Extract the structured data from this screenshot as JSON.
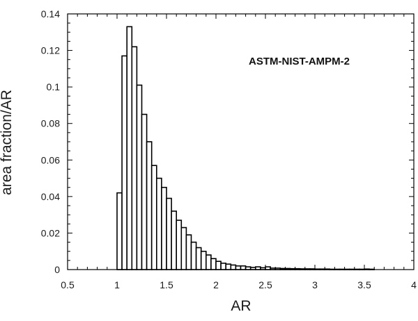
{
  "chart_data": {
    "type": "bar",
    "title": "",
    "xlabel": "AR",
    "ylabel": "area fraction/AR",
    "annotation": "ASTM-NIST-AMPM-2",
    "xlim": [
      0.5,
      4
    ],
    "ylim": [
      0,
      0.14
    ],
    "grid": false,
    "legend": "none",
    "bar_width": 0.05,
    "x_ticks": [
      "0.5",
      "1",
      "1.5",
      "2",
      "2.5",
      "3",
      "3.5",
      "4"
    ],
    "y_ticks": [
      "0",
      "0.02",
      "0.04",
      "0.06",
      "0.08",
      "0.1",
      "0.12",
      "0.14"
    ],
    "bins_left": [
      1.0,
      1.05,
      1.1,
      1.15,
      1.2,
      1.25,
      1.3,
      1.35,
      1.4,
      1.45,
      1.5,
      1.55,
      1.6,
      1.65,
      1.7,
      1.75,
      1.8,
      1.85,
      1.9,
      1.95,
      2.0,
      2.05,
      2.1,
      2.15,
      2.2,
      2.25,
      2.3,
      2.35,
      2.4,
      2.45,
      2.5,
      2.55,
      2.6,
      2.65,
      2.7,
      2.75,
      2.8,
      2.85,
      2.9,
      2.95,
      3.0,
      3.05,
      3.1,
      3.15,
      3.2,
      3.25,
      3.3,
      3.35,
      3.4,
      3.45,
      3.5,
      3.55
    ],
    "values": [
      0.042,
      0.117,
      0.133,
      0.122,
      0.101,
      0.085,
      0.07,
      0.057,
      0.05,
      0.045,
      0.039,
      0.032,
      0.027,
      0.023,
      0.019,
      0.015,
      0.012,
      0.01,
      0.008,
      0.006,
      0.0045,
      0.0035,
      0.003,
      0.0025,
      0.002,
      0.002,
      0.0015,
      0.0012,
      0.0015,
      0.001,
      0.0015,
      0.0008,
      0.0008,
      0.0006,
      0.0006,
      0.0005,
      0.0005,
      0.0004,
      0.0004,
      0.0004,
      0.0003,
      0.0003,
      0.0003,
      0.0002,
      0.0002,
      0.0002,
      0.0002,
      0.0002,
      0.0002,
      0.0002,
      0.0003,
      0.0002
    ],
    "colors": {
      "bar_fill": "#ffffff",
      "bar_stroke": "#000000",
      "axis": "#000000"
    }
  }
}
